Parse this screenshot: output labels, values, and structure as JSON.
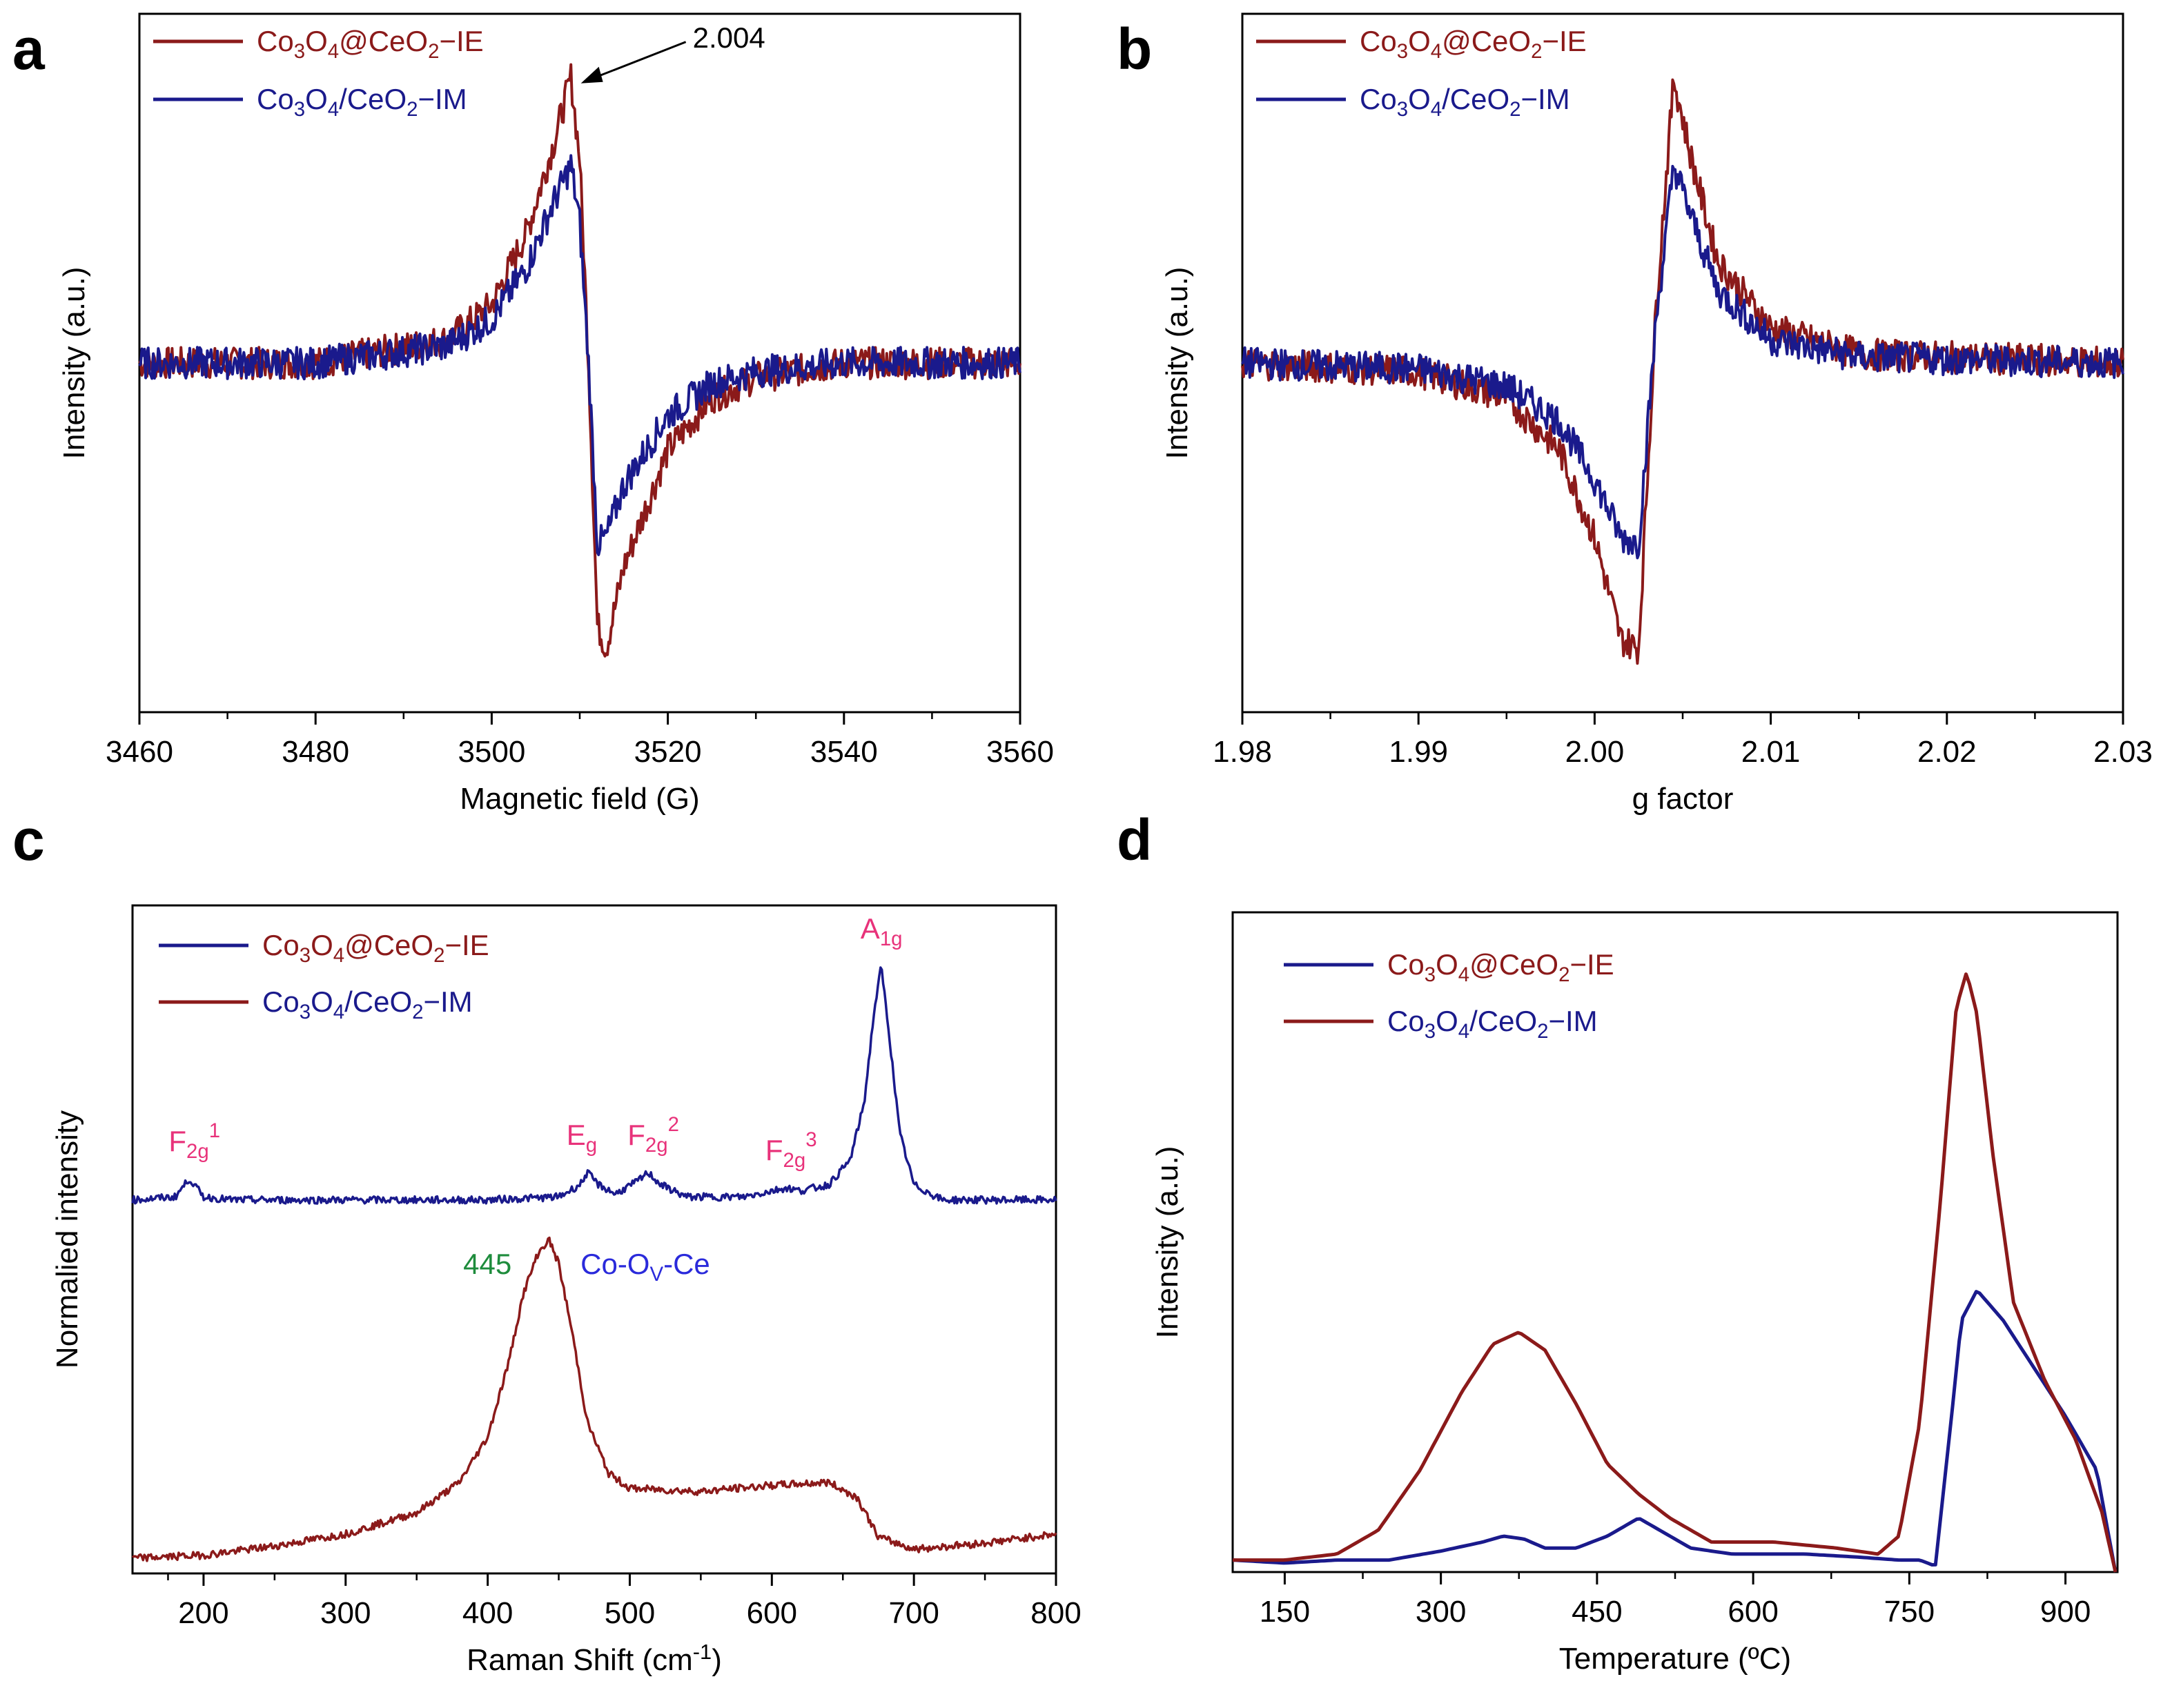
{
  "figure": {
    "colors": {
      "dark_red": "#8B1A1A",
      "navy": "#1A1A8C",
      "pink": "#E8327A",
      "green": "#1E8C3C",
      "blue": "#2A2ADB",
      "black": "#000000"
    }
  },
  "chart_data": [
    {
      "panel": "a",
      "type": "line",
      "title": "",
      "xlabel": "Magnetic field (G)",
      "ylabel": "Intensity (a.u.)",
      "xlim": [
        3460,
        3560
      ],
      "ylim": [
        -1.2,
        1.2
      ],
      "xticks": [
        3460,
        3480,
        3500,
        3520,
        3540,
        3560
      ],
      "xtick_labels": [
        "3460",
        "3480",
        "3500",
        "3520",
        "3540",
        "3560"
      ],
      "legend_position": "top-left",
      "series": [
        {
          "name": "Co3O4@CeO2−IE",
          "label_parts": [
            "Co",
            "3",
            "O",
            "4",
            "@CeO",
            "2",
            "−IE"
          ],
          "color": "#8B1A1A",
          "x": [
            3460,
            3480,
            3495,
            3500,
            3504,
            3507,
            3509,
            3510,
            3511,
            3512,
            3513,
            3515,
            3520,
            3525,
            3530,
            3540,
            3560
          ],
          "y": [
            0,
            0,
            0.08,
            0.2,
            0.45,
            0.75,
            0.98,
            0.7,
            0.0,
            -0.9,
            -0.98,
            -0.7,
            -0.3,
            -0.12,
            -0.05,
            0,
            0
          ]
        },
        {
          "name": "Co3O4/CeO2−IM",
          "label_parts": [
            "Co",
            "3",
            "O",
            "4",
            "/CeO",
            "2",
            "−IM"
          ],
          "color": "#1A1A8C",
          "x": [
            3460,
            3480,
            3495,
            3500,
            3504,
            3507,
            3509,
            3510,
            3511,
            3512,
            3513,
            3515,
            3520,
            3525,
            3530,
            3540,
            3560
          ],
          "y": [
            0,
            0,
            0.06,
            0.15,
            0.33,
            0.55,
            0.68,
            0.48,
            0.0,
            -0.62,
            -0.6,
            -0.42,
            -0.18,
            -0.07,
            -0.03,
            0,
            0
          ]
        }
      ],
      "annotations": [
        {
          "text": "2.004",
          "x": 3509.5,
          "y": 0.98
        }
      ]
    },
    {
      "panel": "b",
      "type": "line",
      "title": "",
      "xlabel": "g factor",
      "ylabel": "Intensity (a.u.)",
      "xlim": [
        1.98,
        2.03
      ],
      "ylim": [
        -1.2,
        1.2
      ],
      "xticks": [
        1.98,
        1.99,
        2.0,
        2.01,
        2.02,
        2.03
      ],
      "xtick_labels": [
        "1.98",
        "1.99",
        "2.00",
        "2.01",
        "2.02",
        "2.03"
      ],
      "legend_position": "top-left",
      "series": [
        {
          "name": "Co3O4@CeO2−IE",
          "label_parts": [
            "Co",
            "3",
            "O",
            "4",
            "@CeO",
            "2",
            "−IE"
          ],
          "color": "#8B1A1A",
          "x": [
            1.98,
            1.99,
            1.995,
            1.998,
            2.0,
            2.0015,
            2.0025,
            2.0035,
            2.0045,
            2.0055,
            2.007,
            2.01,
            2.015,
            2.03
          ],
          "y": [
            0,
            -0.03,
            -0.12,
            -0.3,
            -0.6,
            -0.95,
            -0.98,
            0.2,
            0.98,
            0.7,
            0.35,
            0.12,
            0.03,
            0
          ]
        },
        {
          "name": "Co3O4/CeO2−IM",
          "label_parts": [
            "Co",
            "3",
            "O",
            "4",
            "/CeO",
            "2",
            "−IM"
          ],
          "color": "#1A1A8C",
          "x": [
            1.98,
            1.99,
            1.995,
            1.998,
            2.0,
            2.0015,
            2.0025,
            2.0035,
            2.0045,
            2.0055,
            2.007,
            2.01,
            2.015,
            2.03
          ],
          "y": [
            0,
            -0.02,
            -0.08,
            -0.2,
            -0.4,
            -0.6,
            -0.62,
            0.15,
            0.68,
            0.5,
            0.25,
            0.08,
            0.02,
            0
          ]
        }
      ]
    },
    {
      "panel": "c",
      "type": "line",
      "title": "",
      "xlabel": "Raman Shift (cm⁻¹)",
      "xlabel_parts": [
        "Raman Shift (cm",
        "-1",
        ")"
      ],
      "ylabel": "Normalied intensity",
      "xlim": [
        150,
        800
      ],
      "ylim": [
        0,
        2.2
      ],
      "xticks": [
        200,
        300,
        400,
        500,
        600,
        700,
        800
      ],
      "xtick_labels": [
        "200",
        "300",
        "400",
        "500",
        "600",
        "700",
        "800"
      ],
      "legend_position": "top-left",
      "series": [
        {
          "name": "Co3O4@CeO2−IE",
          "label_parts": [
            "Co",
            "3",
            "O",
            "4",
            "@CeO",
            "2",
            "−IE"
          ],
          "color": "#1A1A8C",
          "x": [
            150,
            180,
            190,
            200,
            220,
            300,
            400,
            450,
            465,
            470,
            478,
            490,
            505,
            513,
            522,
            540,
            580,
            600,
            610,
            620,
            640,
            655,
            665,
            672,
            677,
            682,
            690,
            700,
            720,
            800
          ],
          "y": [
            1.23,
            1.24,
            1.3,
            1.24,
            1.23,
            1.23,
            1.23,
            1.24,
            1.28,
            1.32,
            1.28,
            1.25,
            1.29,
            1.32,
            1.28,
            1.24,
            1.24,
            1.26,
            1.27,
            1.26,
            1.28,
            1.36,
            1.55,
            1.85,
            2.0,
            1.8,
            1.45,
            1.28,
            1.23,
            1.23
          ]
        },
        {
          "name": "Co3O4/CeO2−IM",
          "label_parts": [
            "Co",
            "3",
            "O",
            "4",
            "/CeO",
            "2",
            "−IM"
          ],
          "color": "#8B1A1A",
          "x": [
            150,
            200,
            250,
            300,
            350,
            380,
            400,
            415,
            425,
            435,
            443,
            450,
            460,
            470,
            485,
            500,
            550,
            600,
            640,
            660,
            675,
            700,
            750,
            800
          ],
          "y": [
            0.05,
            0.06,
            0.09,
            0.13,
            0.2,
            0.3,
            0.45,
            0.7,
            0.92,
            1.05,
            1.1,
            1.02,
            0.78,
            0.5,
            0.33,
            0.28,
            0.27,
            0.29,
            0.3,
            0.25,
            0.12,
            0.08,
            0.1,
            0.13
          ]
        }
      ],
      "annotations": [
        {
          "kind": "mode",
          "base": "F",
          "sub": "2g",
          "sup": "1",
          "x": 190,
          "y": 1.3
        },
        {
          "kind": "mode",
          "base": "E",
          "sub": "g",
          "sup": "",
          "x": 470,
          "y": 1.32
        },
        {
          "kind": "mode",
          "base": "F",
          "sub": "2g",
          "sup": "2",
          "x": 513,
          "y": 1.32
        },
        {
          "kind": "mode",
          "base": "F",
          "sub": "2g",
          "sup": "3",
          "x": 610,
          "y": 1.27
        },
        {
          "kind": "mode",
          "base": "A",
          "sub": "1g",
          "sup": "",
          "x": 677,
          "y": 2.0
        },
        {
          "kind": "peak",
          "text": "445",
          "x": 443,
          "y": 1.1
        },
        {
          "kind": "assign",
          "text_parts": [
            "Co-O",
            "V",
            "-Ce"
          ],
          "x": 443,
          "y": 1.1
        }
      ]
    },
    {
      "panel": "d",
      "type": "line",
      "title": "",
      "xlabel": "Temperature (ºC)",
      "ylabel": "Intensity (a.u.)",
      "xlim": [
        100,
        950
      ],
      "ylim": [
        0,
        1.1
      ],
      "xticks": [
        150,
        300,
        450,
        600,
        750,
        900
      ],
      "xtick_labels": [
        "150",
        "300",
        "450",
        "600",
        "750",
        "900"
      ],
      "legend_position": "top-left",
      "series": [
        {
          "name": "Co3O4@CeO2−IE",
          "label_parts": [
            "Co",
            "3",
            "O",
            "4",
            "@CeO",
            "2",
            "−IE"
          ],
          "color": "#1A1A8C",
          "x": [
            100,
            150,
            200,
            250,
            300,
            340,
            360,
            380,
            400,
            430,
            460,
            490,
            510,
            540,
            580,
            650,
            700,
            740,
            760,
            775,
            790,
            800,
            815,
            840,
            870,
            900,
            930,
            948
          ],
          "y": [
            0.02,
            0.015,
            0.02,
            0.02,
            0.035,
            0.05,
            0.06,
            0.055,
            0.04,
            0.04,
            0.06,
            0.09,
            0.07,
            0.04,
            0.03,
            0.03,
            0.025,
            0.02,
            0.02,
            0.01,
            0.25,
            0.42,
            0.47,
            0.42,
            0.34,
            0.26,
            0.17,
            0.0
          ]
        },
        {
          "name": "Co3O4/CeO2−IM",
          "label_parts": [
            "Co",
            "3",
            "O",
            "4",
            "/CeO",
            "2",
            "−IM"
          ],
          "color": "#8B1A1A",
          "x": [
            100,
            150,
            200,
            240,
            280,
            320,
            350,
            375,
            400,
            430,
            460,
            490,
            520,
            560,
            620,
            680,
            720,
            740,
            760,
            780,
            795,
            805,
            815,
            830,
            850,
            880,
            910,
            935,
            948
          ],
          "y": [
            0.02,
            0.02,
            0.03,
            0.07,
            0.17,
            0.3,
            0.38,
            0.4,
            0.37,
            0.28,
            0.18,
            0.13,
            0.09,
            0.05,
            0.05,
            0.04,
            0.03,
            0.06,
            0.25,
            0.62,
            0.94,
            1.0,
            0.93,
            0.7,
            0.45,
            0.32,
            0.22,
            0.1,
            0.0
          ]
        }
      ]
    }
  ]
}
